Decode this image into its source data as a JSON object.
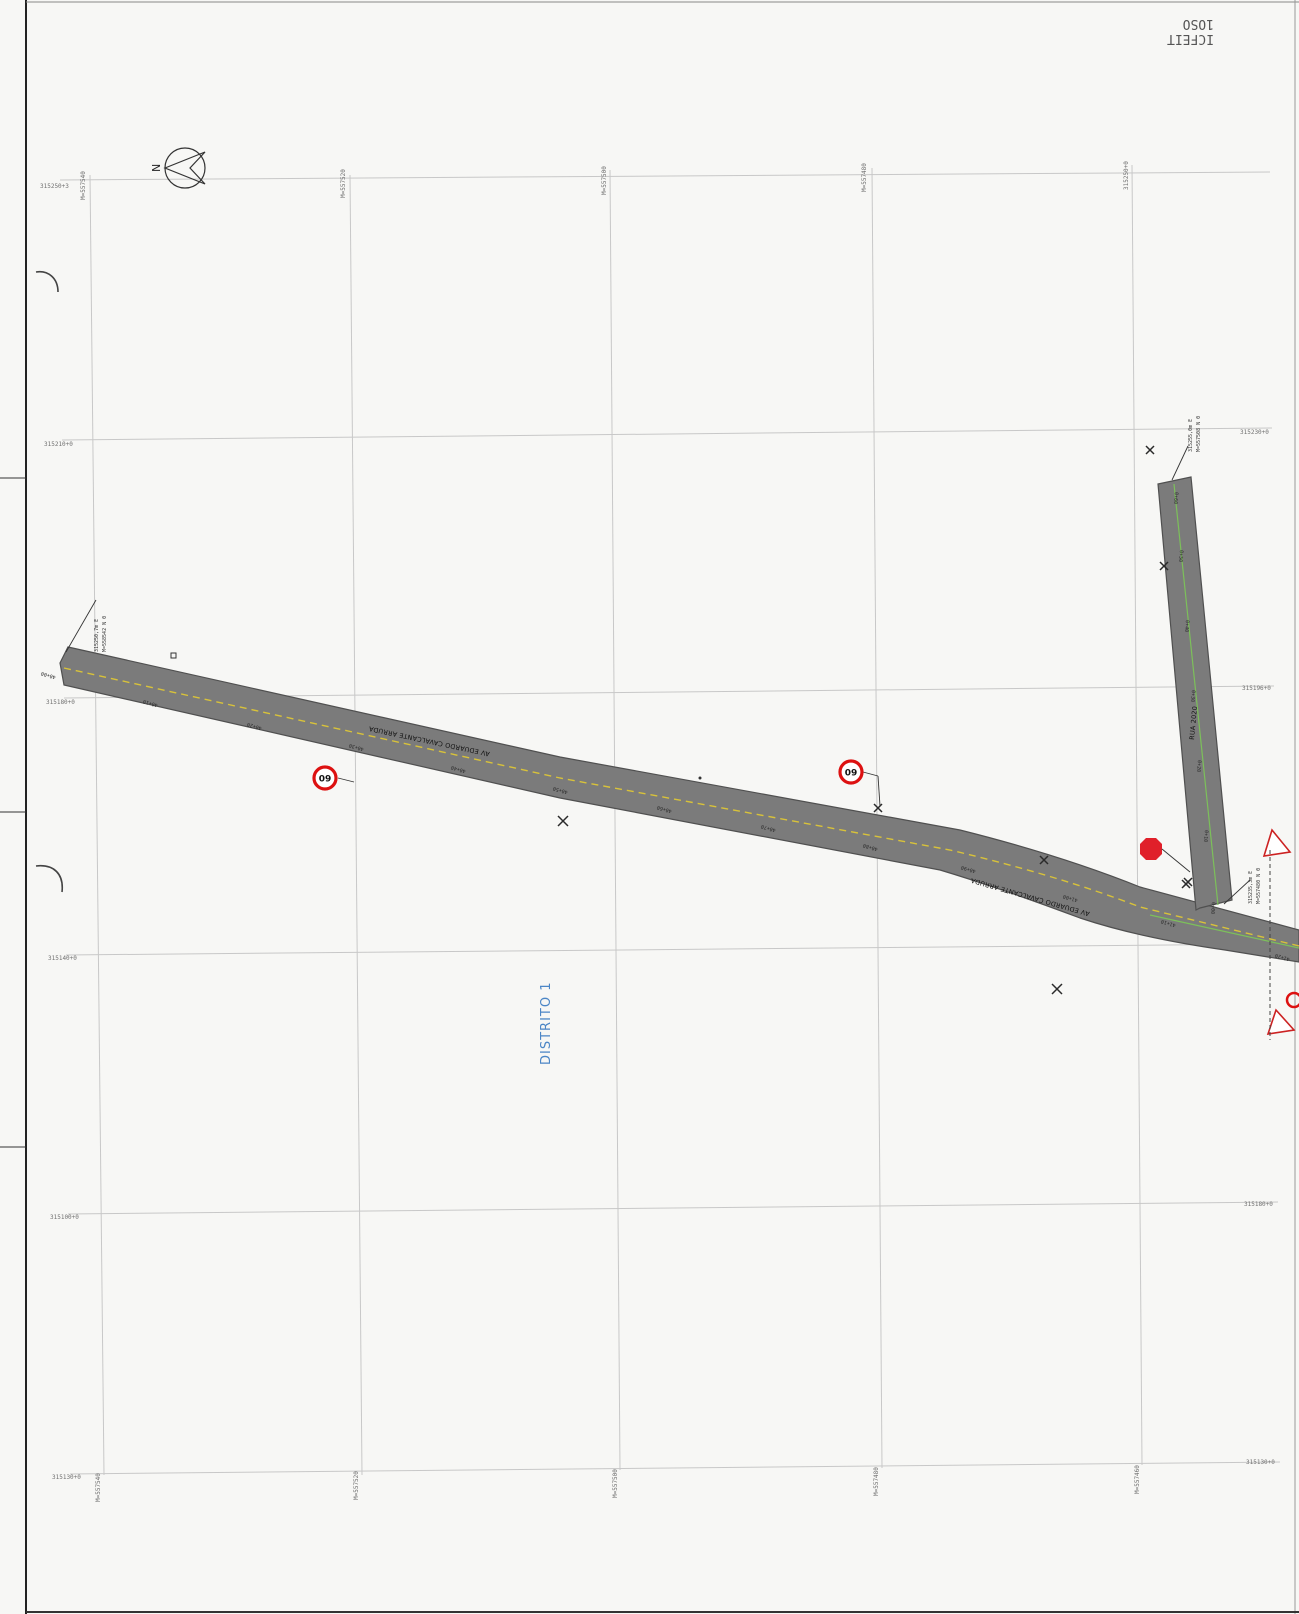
{
  "stamp": {
    "line1": "ICFEIT",
    "line2": "1OSO"
  },
  "north_arrow": {
    "label": "N"
  },
  "grid": {
    "top_labels": [
      "315250+3",
      "M=557540",
      "M=557520",
      "M=557500",
      "M=557480",
      "315250+0"
    ],
    "row_labels_left": [
      "315210+0",
      "315180+0",
      "315140+0",
      "315100+0",
      "315130+0"
    ],
    "row_labels_right": [
      "315230+0",
      "315196+0",
      "315180+0",
      "315130+0"
    ],
    "bottom_labels": [
      "M=557540",
      "M=557520",
      "M=557500",
      "M=557480",
      "M=557460"
    ]
  },
  "roads": {
    "main_name": "AV EDUARDO CAVALCANTE ARRUDA",
    "branch_name": "RUA 2020",
    "main_stations": [
      "40+00",
      "40+10",
      "40+20",
      "40+30",
      "40+40",
      "40+50",
      "40+60",
      "40+70",
      "40+80",
      "40+90",
      "41+00",
      "41+10",
      "41+20"
    ],
    "branch_stations": [
      "0+00",
      "0+10",
      "0+20",
      "0+30",
      "0+40",
      "0+50",
      "0+60"
    ],
    "callout_start": [
      "315250,7m E",
      "M=558542 N 0"
    ],
    "callout_branch": [
      "315255,0m E",
      "M=557508 N 0"
    ],
    "callout_junction": [
      "315235,3m E",
      "M=557480 N 0"
    ]
  },
  "signs": [
    {
      "type": "speed-limit",
      "value": "60"
    },
    {
      "type": "speed-limit",
      "value": "60"
    },
    {
      "type": "stop",
      "value": "PARE"
    }
  ],
  "district_label": "DISTRITO 1"
}
